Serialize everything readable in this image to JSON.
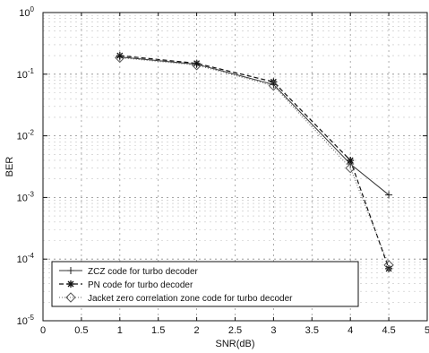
{
  "chart_data": {
    "type": "line",
    "title": "",
    "xlabel": "SNR(dB)",
    "ylabel": "BER",
    "xlim": [
      0,
      5
    ],
    "ylim": [
      1e-05,
      1
    ],
    "yscale": "log",
    "grid": true,
    "x_ticks": [
      "0",
      "0.5",
      "1",
      "1.5",
      "2",
      "2.5",
      "3",
      "3.5",
      "4",
      "4.5",
      "5"
    ],
    "x_tick_values": [
      0,
      0.5,
      1,
      1.5,
      2,
      2.5,
      3,
      3.5,
      4,
      4.5,
      5
    ],
    "y_ticks": [
      {
        "base": "10",
        "exp": "0"
      },
      {
        "base": "10",
        "exp": "-1"
      },
      {
        "base": "10",
        "exp": "-2"
      },
      {
        "base": "10",
        "exp": "-3"
      },
      {
        "base": "10",
        "exp": "-4"
      },
      {
        "base": "10",
        "exp": "-5"
      }
    ],
    "y_tick_values": [
      1,
      0.1,
      0.01,
      0.001,
      0.0001,
      1e-05
    ],
    "legend_position": "bottom-left",
    "series": [
      {
        "name": "ZCZ code for turbo decoder",
        "marker": "plus",
        "x": [
          1,
          2,
          3,
          4,
          4.5
        ],
        "y": [
          0.19,
          0.145,
          0.068,
          0.0035,
          0.0011
        ]
      },
      {
        "name": "PN code for turbo decoder",
        "marker": "star",
        "x": [
          1,
          2,
          3,
          4,
          4.5
        ],
        "y": [
          0.2,
          0.15,
          0.075,
          0.004,
          7e-05
        ]
      },
      {
        "name": "Jacket zero correlation zone code for turbo decoder",
        "marker": "diamond",
        "x": [
          1,
          2,
          3,
          4,
          4.5
        ],
        "y": [
          0.185,
          0.14,
          0.065,
          0.003,
          8e-05
        ]
      }
    ]
  }
}
